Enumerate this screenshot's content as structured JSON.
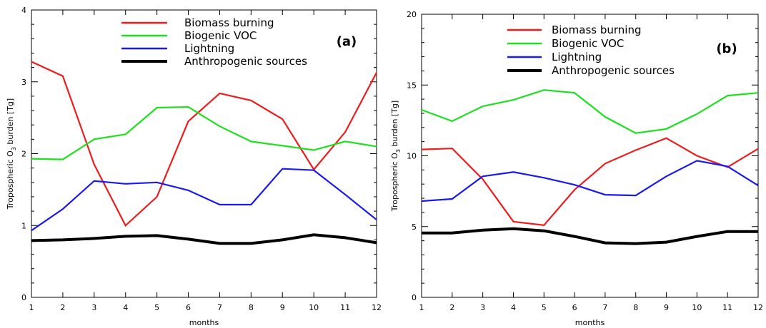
{
  "chart_data": [
    {
      "type": "line",
      "panel_label": "(a)",
      "xlabel": "months",
      "ylabel": "Tropospheric O3 burden [Tg]",
      "ylabel_main": "Tropospheric O",
      "ylabel_sub": "3",
      "ylabel_tail": " burden [Tg]",
      "x": [
        1,
        2,
        3,
        4,
        5,
        6,
        7,
        8,
        9,
        10,
        11,
        12
      ],
      "xlim": [
        1,
        12
      ],
      "ylim": [
        0,
        4
      ],
      "xticks": [
        "1",
        "2",
        "3",
        "4",
        "5",
        "6",
        "7",
        "8",
        "9",
        "10",
        "11",
        "12"
      ],
      "yticks": [
        {
          "value": 0,
          "label": "0"
        },
        {
          "value": 1,
          "label": "1"
        },
        {
          "value": 2,
          "label": "2"
        },
        {
          "value": 3,
          "label": "3"
        },
        {
          "value": 4,
          "label": "4"
        }
      ],
      "legend_position": "top",
      "series": [
        {
          "name": "Biomass burning",
          "color": "#ee1c1c",
          "values": [
            3.28,
            3.08,
            1.85,
            1.0,
            1.4,
            2.45,
            2.84,
            2.74,
            2.48,
            1.78,
            2.3,
            3.13
          ]
        },
        {
          "name": "Biogenic VOC",
          "color": "#1ee01e",
          "values": [
            1.93,
            1.92,
            2.2,
            2.27,
            2.64,
            2.65,
            2.38,
            2.17,
            2.11,
            2.05,
            2.17,
            2.1
          ]
        },
        {
          "name": "Lightning",
          "color": "#1a1aee",
          "values": [
            0.93,
            1.23,
            1.62,
            1.58,
            1.6,
            1.49,
            1.29,
            1.29,
            1.79,
            1.77,
            1.43,
            1.08
          ]
        },
        {
          "name": "Anthropogenic sources",
          "color": "#000000",
          "values": [
            0.79,
            0.8,
            0.82,
            0.85,
            0.86,
            0.81,
            0.75,
            0.75,
            0.8,
            0.87,
            0.83,
            0.76
          ]
        }
      ]
    },
    {
      "type": "line",
      "panel_label": "(b)",
      "xlabel": "months",
      "ylabel": "Tropospheric O3 burden [Tg]",
      "ylabel_main": "Tropospheric O",
      "ylabel_sub": "3",
      "ylabel_tail": " burden [Tg]",
      "x": [
        1,
        2,
        3,
        4,
        5,
        6,
        7,
        8,
        9,
        10,
        11,
        12
      ],
      "xlim": [
        1,
        12
      ],
      "ylim": [
        0,
        20
      ],
      "xticks": [
        "1",
        "2",
        "3",
        "4",
        "5",
        "6",
        "7",
        "8",
        "9",
        "10",
        "11",
        "12"
      ],
      "yticks": [
        {
          "value": 0,
          "label": "0"
        },
        {
          "value": 5,
          "label": "5"
        },
        {
          "value": 10,
          "label": "10"
        },
        {
          "value": 15,
          "label": "15"
        },
        {
          "value": 20,
          "label": "20"
        }
      ],
      "legend_position": "top",
      "series": [
        {
          "name": "Biomass burning",
          "color": "#ee1c1c",
          "values": [
            10.45,
            10.52,
            8.35,
            5.35,
            5.1,
            7.6,
            9.45,
            10.4,
            11.25,
            10.0,
            9.2,
            10.5
          ]
        },
        {
          "name": "Biogenic VOC",
          "color": "#1ee01e",
          "values": [
            13.25,
            12.45,
            13.5,
            13.95,
            14.65,
            14.45,
            12.75,
            11.6,
            11.9,
            12.95,
            14.25,
            14.45
          ]
        },
        {
          "name": "Lightning",
          "color": "#1a1aee",
          "values": [
            6.8,
            6.95,
            8.55,
            8.85,
            8.45,
            7.95,
            7.25,
            7.2,
            8.55,
            9.65,
            9.25,
            7.9
          ]
        },
        {
          "name": "Anthropogenic sources",
          "color": "#000000",
          "values": [
            4.55,
            4.55,
            4.75,
            4.85,
            4.7,
            4.3,
            3.85,
            3.8,
            3.9,
            4.3,
            4.65,
            4.65
          ]
        }
      ]
    }
  ]
}
